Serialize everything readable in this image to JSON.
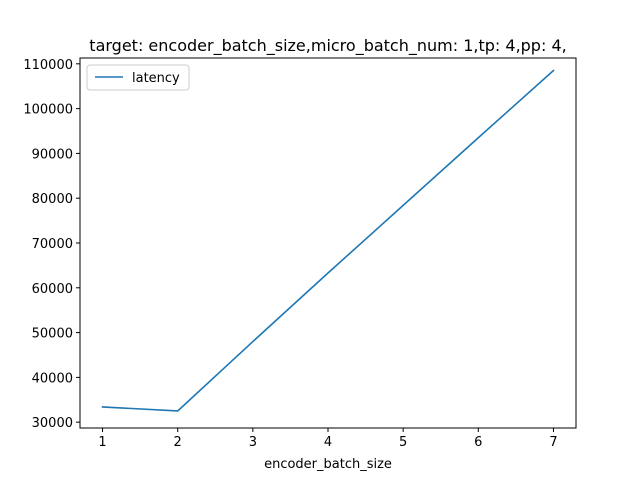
{
  "chart_data": {
    "type": "line",
    "title": "target: encoder_batch_size,micro_batch_num: 1,tp: 4,pp: 4,",
    "xlabel": "encoder_batch_size",
    "ylabel": "",
    "x": [
      1,
      2,
      3,
      4,
      5,
      6,
      7
    ],
    "series": [
      {
        "name": "latency",
        "color": "#1f77b4",
        "values": [
          33400,
          32500,
          48000,
          63300,
          78400,
          93500,
          108500
        ]
      }
    ],
    "xlim": [
      0.7,
      7.3
    ],
    "ylim": [
      28700,
      111300
    ],
    "xticks": [
      1,
      2,
      3,
      4,
      5,
      6,
      7
    ],
    "yticks": [
      30000,
      40000,
      50000,
      60000,
      70000,
      80000,
      90000,
      100000,
      110000
    ],
    "grid": false,
    "legend_position": "upper-left"
  }
}
